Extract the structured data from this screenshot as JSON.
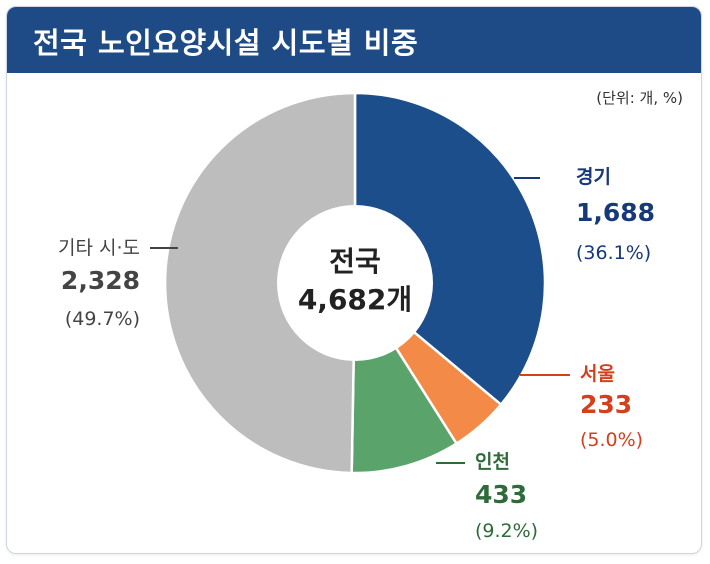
{
  "header": {
    "title": "전국 노인요양시설 시도별 비중"
  },
  "unit_label": "(단위: 개, %)",
  "center": {
    "line1": "전국",
    "line2": "4,682개"
  },
  "colors": {
    "header_bg": "#1e4a86",
    "gyeonggi": "#1b4e8a",
    "seoul": "#f48a47",
    "incheon": "#5aa46b",
    "others": "#bdbdbd",
    "gyeonggi_text": "#16397a",
    "seoul_text": "#d4401c",
    "incheon_text": "#2f6b3a",
    "others_text": "#444444"
  },
  "chart_data": {
    "type": "pie",
    "title": "전국 노인요양시설 시도별 비중",
    "unit": "(단위: 개, %)",
    "total": 4682,
    "slices": [
      {
        "name": "경기",
        "value": 1688,
        "value_label": "1,688",
        "percent": 36.1,
        "percent_label": "(36.1%)"
      },
      {
        "name": "서울",
        "value": 233,
        "value_label": "233",
        "percent": 5.0,
        "percent_label": "(5.0%)"
      },
      {
        "name": "인천",
        "value": 433,
        "value_label": "433",
        "percent": 9.2,
        "percent_label": "(9.2%)"
      },
      {
        "name": "기타 시·도",
        "value": 2328,
        "value_label": "2,328",
        "percent": 49.7,
        "percent_label": "(49.7%)"
      }
    ]
  }
}
